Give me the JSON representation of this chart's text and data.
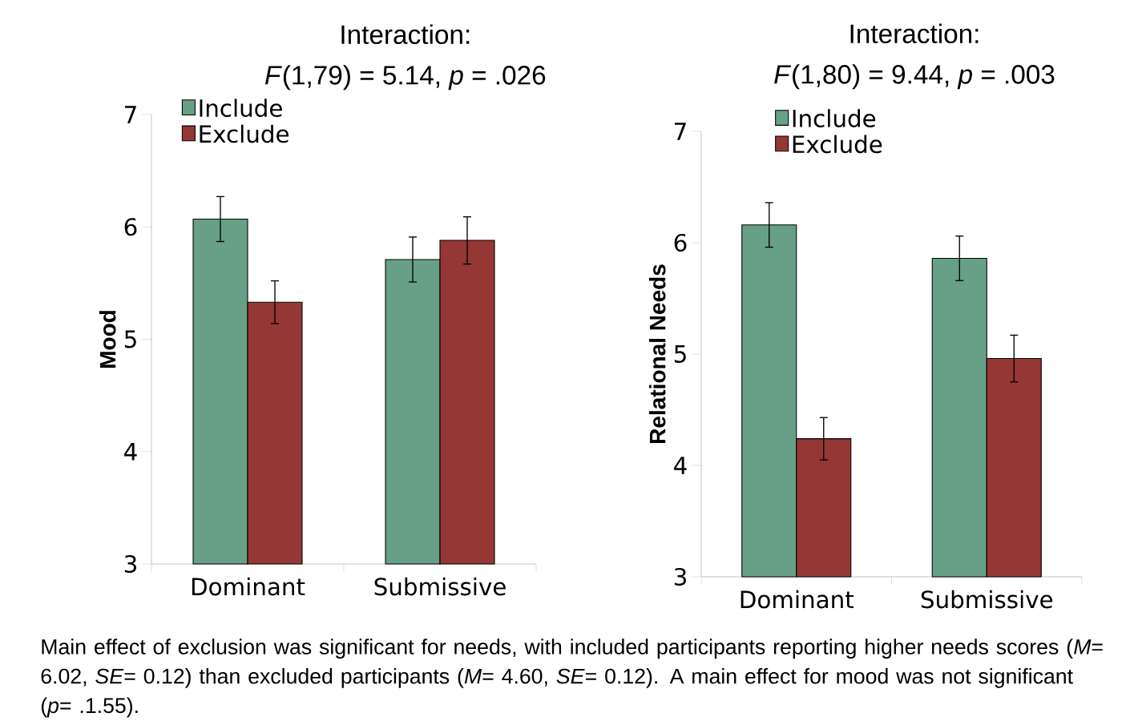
{
  "chart_data": [
    {
      "type": "bar",
      "title": "Interaction:",
      "subtitle": "*F*(1,79) = 5.14, *p* = .026",
      "ylabel": "Mood",
      "categories": [
        "Dominant",
        "Submissive"
      ],
      "series": [
        {
          "name": "Include",
          "color": "#67a086",
          "values": [
            6.07,
            5.71
          ],
          "errors": [
            0.2,
            0.2
          ]
        },
        {
          "name": "Exclude",
          "color": "#953735",
          "values": [
            5.33,
            5.88
          ],
          "errors": [
            0.19,
            0.21
          ]
        }
      ],
      "ylim": [
        3,
        7
      ],
      "yticks": [
        3,
        4,
        5,
        6,
        7
      ],
      "legend": "top left",
      "grid": false,
      "annotations": [
        "Main effect of exclusion was significant for needs, with included participants reporting higher needs scores (*M*= 6.02, *SE*= 0.12) than excluded participants (*M*= 4.60, *SE*= 0.12). A main effect for mood was not significant (*p*= .1.55)."
      ]
    },
    {
      "type": "bar",
      "title": "Interaction:",
      "subtitle": "*F*(1,80) = 9.44, *p* = .003",
      "ylabel": "Relational Needs",
      "categories": [
        "Dominant",
        "Submissive"
      ],
      "series": [
        {
          "name": "Include",
          "color": "#67a086",
          "values": [
            6.16,
            5.86
          ],
          "errors": [
            0.2,
            0.2
          ]
        },
        {
          "name": "Exclude",
          "color": "#953735",
          "values": [
            4.24,
            4.96
          ],
          "errors": [
            0.19,
            0.21
          ]
        }
      ],
      "ylim": [
        3,
        7
      ],
      "yticks": [
        3,
        4,
        5,
        6,
        7
      ],
      "legend": "top left",
      "grid": false
    }
  ]
}
